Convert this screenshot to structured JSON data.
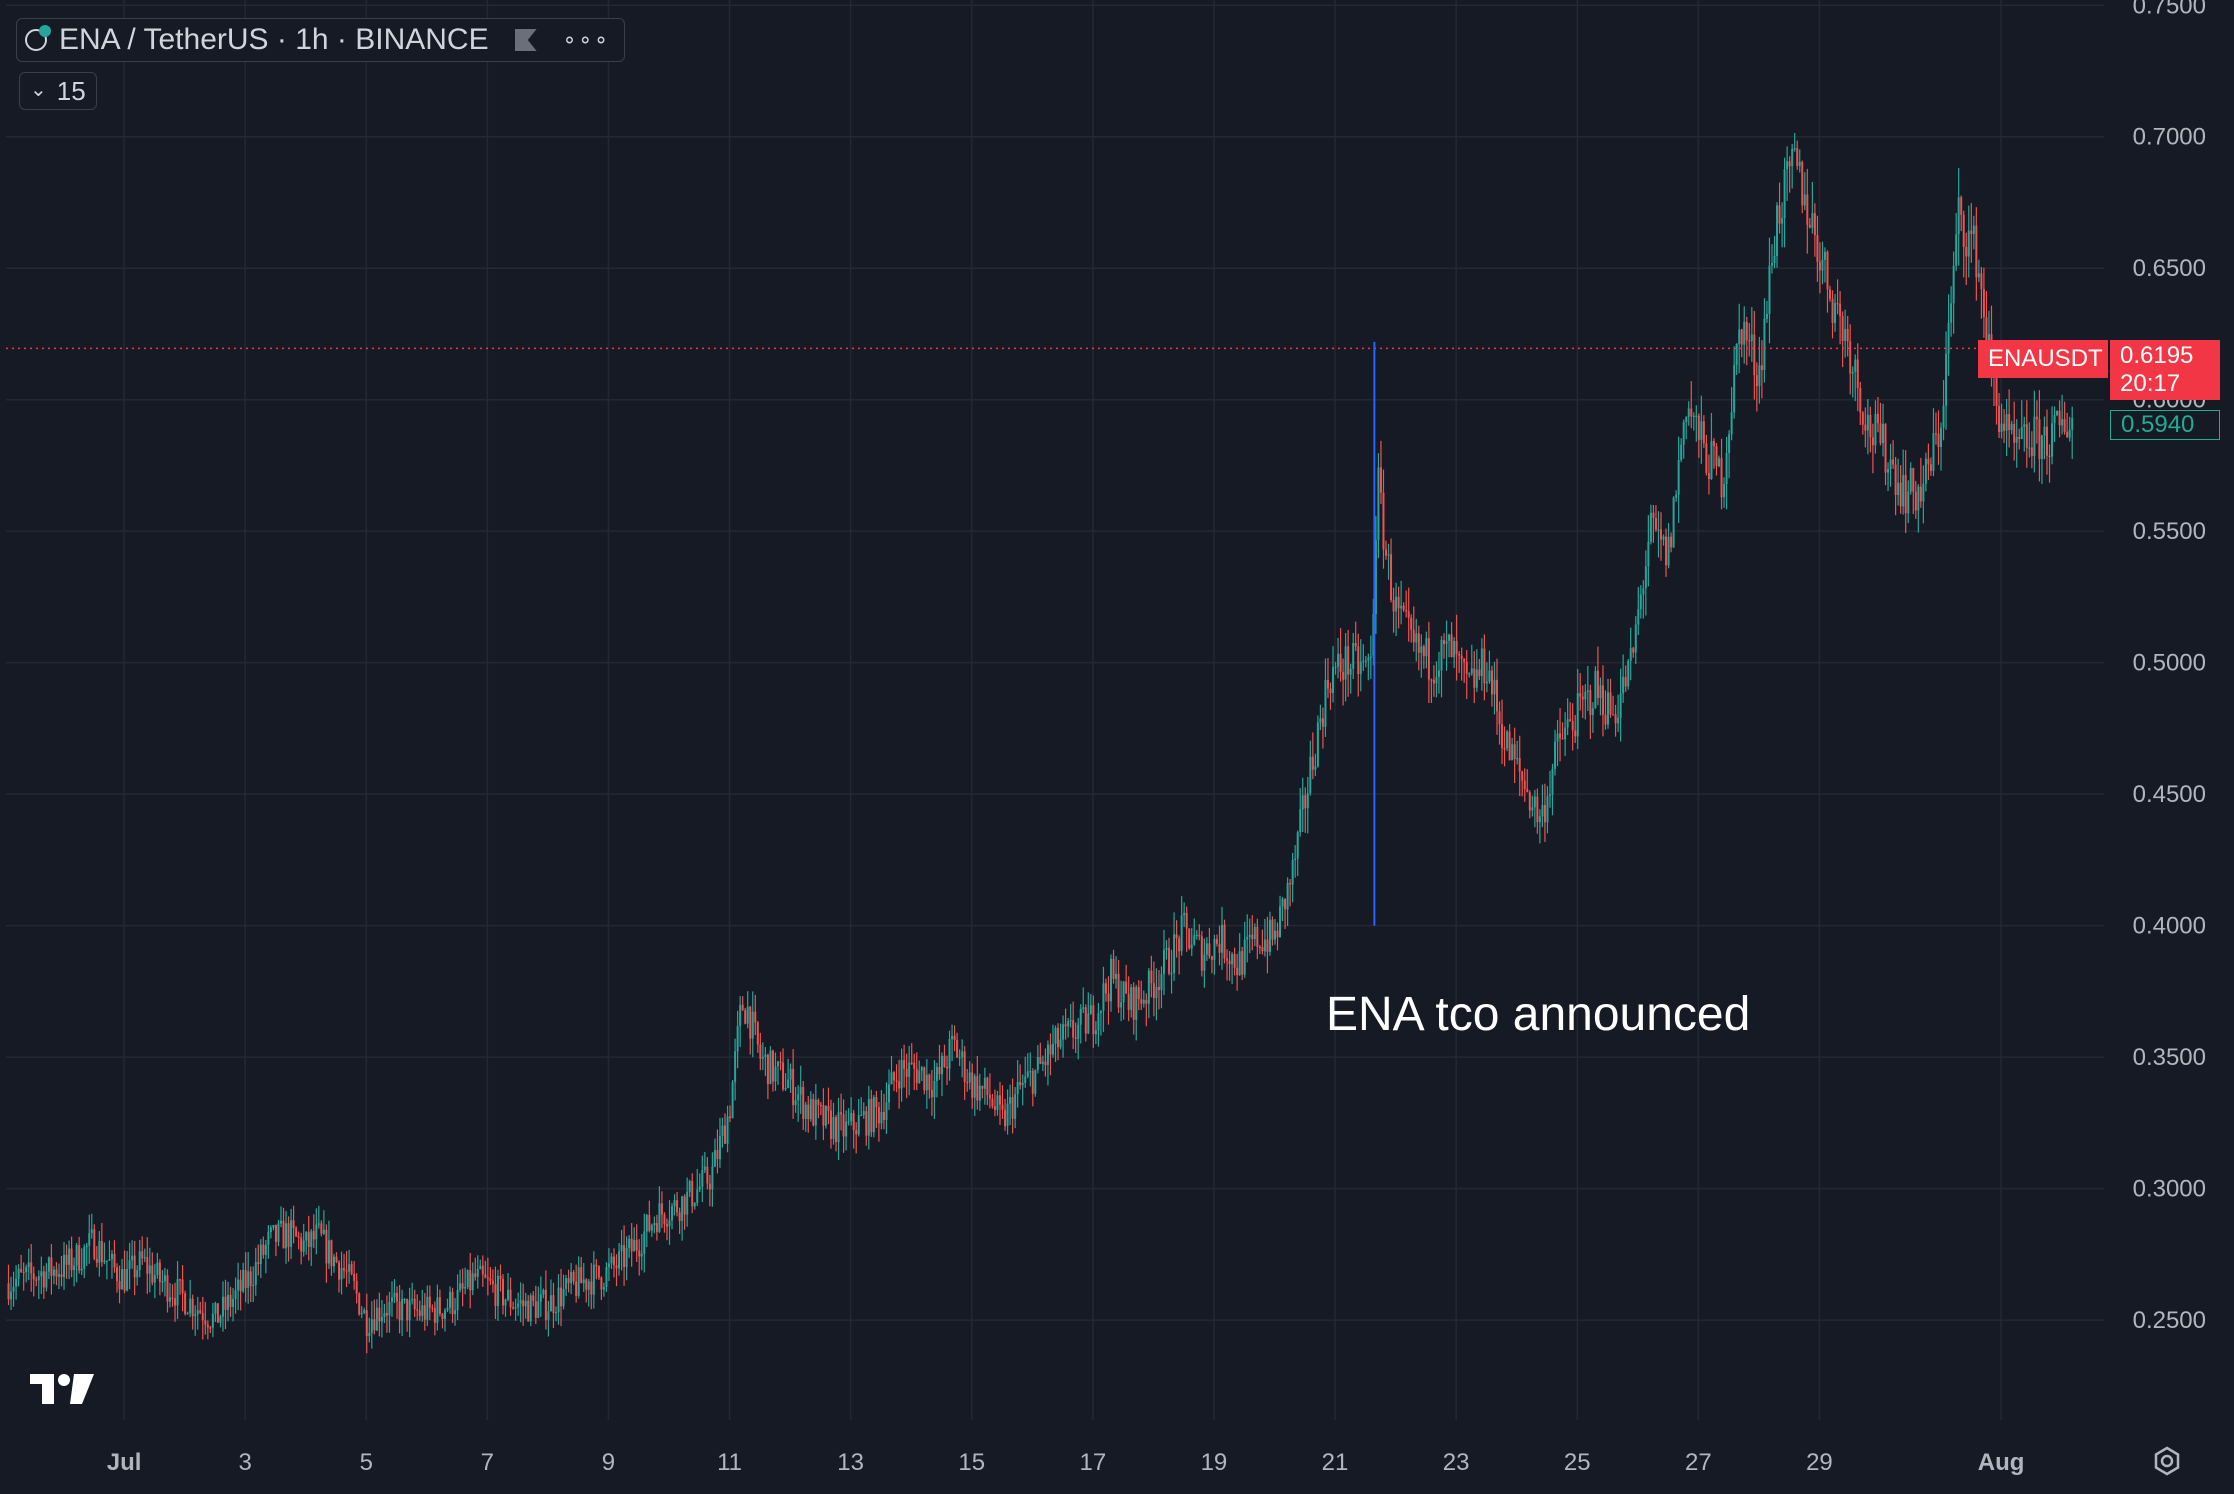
{
  "legend": {
    "symbol_title": "ENA / TetherUS · 1h · BINANCE",
    "indicator_count": "15",
    "icons": [
      "symbol-logo-icon",
      "flag-icon",
      "more-dots-icon",
      "chevron-down-icon"
    ]
  },
  "current_price": {
    "ticker": "ENAUSDT",
    "price": "0.6195",
    "countdown": "20:17",
    "second_price": "0.5940",
    "color": "#f23645",
    "second_color": "#22ab94"
  },
  "annotation": {
    "text": "ENA tco announced",
    "date_index": 21.65,
    "price_low": 0.4,
    "price_high": 0.622,
    "color": "#2962ff"
  },
  "colors": {
    "up": "#26a69a",
    "down": "#ef5350",
    "background": "#161a25",
    "grid": "#242833",
    "text": "#b2b5be"
  },
  "chart_data": {
    "type": "candlestick",
    "interval": "1h",
    "symbol": "ENAUSDT",
    "exchange": "BINANCE",
    "xlabel": "",
    "ylabel": "",
    "x_ticks": [
      "Jul",
      "3",
      "5",
      "7",
      "9",
      "11",
      "13",
      "15",
      "17",
      "19",
      "21",
      "23",
      "25",
      "27",
      "29",
      "Aug"
    ],
    "x_tick_days": [
      1,
      3,
      5,
      7,
      9,
      11,
      13,
      15,
      17,
      19,
      21,
      23,
      25,
      27,
      29,
      32
    ],
    "x_range_days": [
      -0.95,
      33.7
    ],
    "y_ticks": [
      "0.2500",
      "0.3000",
      "0.3500",
      "0.4000",
      "0.4500",
      "0.5000",
      "0.5500",
      "0.6000",
      "0.6500",
      "0.7000",
      "0.7500"
    ],
    "y_range": [
      0.212,
      0.752
    ],
    "close_path_days": [
      -0.95,
      -0.5,
      0,
      0.3,
      0.5,
      0.8,
      1.0,
      1.3,
      1.6,
      1.9,
      2.2,
      2.5,
      2.8,
      3.1,
      3.4,
      3.7,
      4.0,
      4.2,
      4.4,
      4.6,
      4.8,
      5.0,
      5.3,
      5.6,
      5.9,
      6.2,
      6.5,
      6.8,
      7.1,
      7.4,
      7.7,
      8.0,
      8.3,
      8.6,
      8.9,
      9.2,
      9.5,
      9.8,
      10.1,
      10.4,
      10.7,
      11.0,
      11.2,
      11.3,
      11.5,
      11.7,
      12.0,
      12.3,
      12.6,
      12.9,
      13.2,
      13.5,
      13.8,
      14.1,
      14.4,
      14.7,
      15.0,
      15.3,
      15.5,
      15.8,
      16.1,
      16.4,
      16.7,
      17.0,
      17.3,
      17.6,
      17.9,
      18.2,
      18.5,
      18.8,
      19.1,
      19.4,
      19.7,
      20.0,
      20.3,
      20.6,
      20.9,
      21.2,
      21.5,
      21.6,
      21.7,
      21.85,
      22.0,
      22.3,
      22.6,
      22.9,
      23.2,
      23.5,
      23.8,
      24.1,
      24.4,
      24.7,
      25.0,
      25.3,
      25.6,
      25.9,
      26.2,
      26.5,
      26.8,
      27.1,
      27.4,
      27.7,
      28.0,
      28.3,
      28.6,
      28.9,
      29.2,
      29.5,
      29.8,
      30.1,
      30.4,
      30.7,
      31.0,
      31.3,
      31.6,
      31.9,
      32.2,
      32.5,
      32.8,
      33.2
    ],
    "close_path_values": [
      0.264,
      0.267,
      0.27,
      0.275,
      0.28,
      0.27,
      0.266,
      0.272,
      0.265,
      0.26,
      0.255,
      0.25,
      0.258,
      0.267,
      0.28,
      0.283,
      0.278,
      0.282,
      0.275,
      0.27,
      0.262,
      0.25,
      0.255,
      0.254,
      0.253,
      0.254,
      0.258,
      0.266,
      0.262,
      0.257,
      0.255,
      0.256,
      0.261,
      0.265,
      0.267,
      0.272,
      0.28,
      0.29,
      0.293,
      0.298,
      0.305,
      0.33,
      0.37,
      0.368,
      0.35,
      0.345,
      0.34,
      0.33,
      0.325,
      0.322,
      0.326,
      0.33,
      0.345,
      0.345,
      0.34,
      0.355,
      0.34,
      0.335,
      0.325,
      0.338,
      0.345,
      0.355,
      0.36,
      0.365,
      0.38,
      0.37,
      0.375,
      0.385,
      0.398,
      0.39,
      0.395,
      0.385,
      0.395,
      0.395,
      0.42,
      0.46,
      0.495,
      0.5,
      0.498,
      0.5,
      0.57,
      0.54,
      0.52,
      0.505,
      0.5,
      0.505,
      0.49,
      0.5,
      0.47,
      0.455,
      0.44,
      0.47,
      0.48,
      0.49,
      0.48,
      0.5,
      0.55,
      0.54,
      0.6,
      0.58,
      0.57,
      0.63,
      0.61,
      0.67,
      0.69,
      0.665,
      0.64,
      0.62,
      0.59,
      0.58,
      0.565,
      0.565,
      0.59,
      0.67,
      0.655,
      0.6,
      0.58,
      0.585,
      0.585,
      0.594
    ],
    "last_price": 0.6195
  }
}
